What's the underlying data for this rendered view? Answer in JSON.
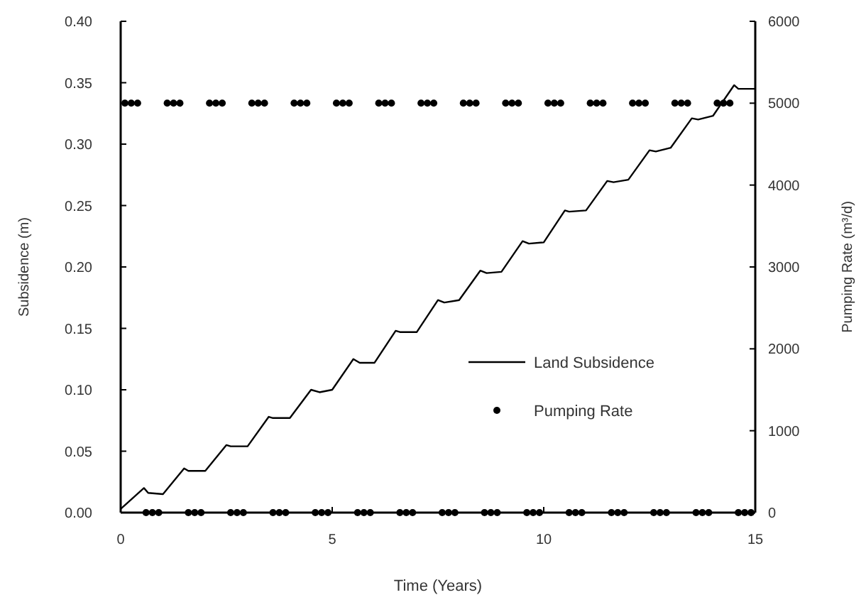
{
  "chart_data": {
    "type": "line",
    "xlabel": "Time (Years)",
    "ylabel": "Subsidence (m)",
    "y2label": "Pumping Rate (m³/d)",
    "xlim": [
      0,
      15
    ],
    "xticks": [
      0,
      5,
      10,
      15
    ],
    "ylim": [
      0,
      0.4
    ],
    "yticks": [
      {
        "value": 0,
        "label": "0.00"
      },
      {
        "value": 0.05,
        "label": "0.05"
      },
      {
        "value": 0.1,
        "label": "0.10"
      },
      {
        "value": 0.15,
        "label": "0.15"
      },
      {
        "value": 0.2,
        "label": "0.20"
      },
      {
        "value": 0.25,
        "label": "0.25"
      },
      {
        "value": 0.3,
        "label": "0.30"
      },
      {
        "value": 0.35,
        "label": "0.35"
      },
      {
        "value": 0.4,
        "label": "0.40"
      }
    ],
    "y2lim": [
      0,
      6000
    ],
    "y2ticks": [
      0,
      1000,
      2000,
      3000,
      4000,
      5000,
      6000
    ],
    "grid": false,
    "legend": "bottom right",
    "series": [
      {
        "name": "Land Subsidence",
        "color": "#000000",
        "line_style": "solid",
        "marker": "none",
        "x": [
          0,
          0.55,
          0.65,
          1.0,
          1.5,
          1.6,
          2.0,
          2.5,
          2.6,
          3.0,
          3.5,
          3.6,
          4.0,
          4.5,
          4.7,
          5.0,
          5.5,
          5.65,
          6.0,
          6.5,
          6.6,
          7.0,
          7.5,
          7.65,
          8.0,
          8.5,
          8.65,
          9.0,
          9.5,
          9.65,
          10.0,
          10.5,
          10.6,
          11.0,
          11.5,
          11.65,
          12.0,
          12.5,
          12.65,
          13.0,
          13.5,
          13.65,
          14.0,
          14.5,
          14.6,
          15.0
        ],
        "values": [
          0.003,
          0.02,
          0.016,
          0.015,
          0.036,
          0.034,
          0.034,
          0.055,
          0.054,
          0.054,
          0.078,
          0.077,
          0.077,
          0.1,
          0.098,
          0.1,
          0.125,
          0.122,
          0.122,
          0.148,
          0.147,
          0.147,
          0.173,
          0.171,
          0.173,
          0.197,
          0.195,
          0.196,
          0.221,
          0.219,
          0.22,
          0.246,
          0.245,
          0.246,
          0.27,
          0.269,
          0.271,
          0.295,
          0.294,
          0.297,
          0.321,
          0.32,
          0.323,
          0.348,
          0.345,
          0.345
        ]
      },
      {
        "name": "Pumping Rate",
        "type": "scatter",
        "axis": "y2",
        "color": "#000000",
        "marker": "circle",
        "x": [
          0.1,
          0.25,
          0.4,
          0.6,
          0.75,
          0.9,
          1.1,
          1.25,
          1.4,
          1.6,
          1.75,
          1.9,
          2.1,
          2.25,
          2.4,
          2.6,
          2.75,
          2.9,
          3.1,
          3.25,
          3.4,
          3.6,
          3.75,
          3.9,
          4.1,
          4.25,
          4.4,
          4.6,
          4.75,
          4.9,
          5.1,
          5.25,
          5.4,
          5.6,
          5.75,
          5.9,
          6.1,
          6.25,
          6.4,
          6.6,
          6.75,
          6.9,
          7.1,
          7.25,
          7.4,
          7.6,
          7.75,
          7.9,
          8.1,
          8.25,
          8.4,
          8.6,
          8.75,
          8.9,
          9.1,
          9.25,
          9.4,
          9.6,
          9.75,
          9.9,
          10.1,
          10.25,
          10.4,
          10.6,
          10.75,
          10.9,
          11.1,
          11.25,
          11.4,
          11.6,
          11.75,
          11.9,
          12.1,
          12.25,
          12.4,
          12.6,
          12.75,
          12.9,
          13.1,
          13.25,
          13.4,
          13.6,
          13.75,
          13.9,
          14.1,
          14.25,
          14.4,
          14.6,
          14.75,
          14.9
        ],
        "values": [
          5000,
          5000,
          5000,
          0,
          0,
          0,
          5000,
          5000,
          5000,
          0,
          0,
          0,
          5000,
          5000,
          5000,
          0,
          0,
          0,
          5000,
          5000,
          5000,
          0,
          0,
          0,
          5000,
          5000,
          5000,
          0,
          0,
          0,
          5000,
          5000,
          5000,
          0,
          0,
          0,
          5000,
          5000,
          5000,
          0,
          0,
          0,
          5000,
          5000,
          5000,
          0,
          0,
          0,
          5000,
          5000,
          5000,
          0,
          0,
          0,
          5000,
          5000,
          5000,
          0,
          0,
          0,
          5000,
          5000,
          5000,
          0,
          0,
          0,
          5000,
          5000,
          5000,
          0,
          0,
          0,
          5000,
          5000,
          5000,
          0,
          0,
          0,
          5000,
          5000,
          5000,
          0,
          0,
          0,
          5000,
          5000,
          5000,
          0,
          0,
          0
        ]
      }
    ]
  }
}
